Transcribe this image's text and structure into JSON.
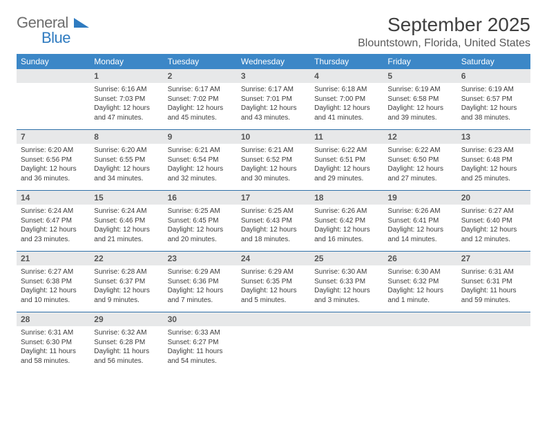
{
  "logo": {
    "text_general": "General",
    "text_blue": "Blue"
  },
  "title": "September 2025",
  "location": "Blountstown, Florida, United States",
  "colors": {
    "header_bg": "#3c87c7",
    "header_text": "#ffffff",
    "daynum_bg": "#e7e8e9",
    "daynum_text": "#555555",
    "row_border": "#2d6fa8",
    "body_text": "#3b3b3b",
    "logo_gray": "#6d6d6d",
    "logo_blue": "#2f7bc0",
    "title_color": "#404040",
    "location_color": "#585858"
  },
  "typography": {
    "month_title_size": 28,
    "location_size": 16,
    "header_size": 12,
    "daynum_size": 12,
    "cell_size": 10
  },
  "day_names": [
    "Sunday",
    "Monday",
    "Tuesday",
    "Wednesday",
    "Thursday",
    "Friday",
    "Saturday"
  ],
  "weeks": [
    {
      "nums": [
        "",
        "1",
        "2",
        "3",
        "4",
        "5",
        "6"
      ],
      "cells": [
        {
          "sunrise": "",
          "sunset": "",
          "daylight": ""
        },
        {
          "sunrise": "Sunrise: 6:16 AM",
          "sunset": "Sunset: 7:03 PM",
          "daylight": "Daylight: 12 hours and 47 minutes."
        },
        {
          "sunrise": "Sunrise: 6:17 AM",
          "sunset": "Sunset: 7:02 PM",
          "daylight": "Daylight: 12 hours and 45 minutes."
        },
        {
          "sunrise": "Sunrise: 6:17 AM",
          "sunset": "Sunset: 7:01 PM",
          "daylight": "Daylight: 12 hours and 43 minutes."
        },
        {
          "sunrise": "Sunrise: 6:18 AM",
          "sunset": "Sunset: 7:00 PM",
          "daylight": "Daylight: 12 hours and 41 minutes."
        },
        {
          "sunrise": "Sunrise: 6:19 AM",
          "sunset": "Sunset: 6:58 PM",
          "daylight": "Daylight: 12 hours and 39 minutes."
        },
        {
          "sunrise": "Sunrise: 6:19 AM",
          "sunset": "Sunset: 6:57 PM",
          "daylight": "Daylight: 12 hours and 38 minutes."
        }
      ]
    },
    {
      "nums": [
        "7",
        "8",
        "9",
        "10",
        "11",
        "12",
        "13"
      ],
      "cells": [
        {
          "sunrise": "Sunrise: 6:20 AM",
          "sunset": "Sunset: 6:56 PM",
          "daylight": "Daylight: 12 hours and 36 minutes."
        },
        {
          "sunrise": "Sunrise: 6:20 AM",
          "sunset": "Sunset: 6:55 PM",
          "daylight": "Daylight: 12 hours and 34 minutes."
        },
        {
          "sunrise": "Sunrise: 6:21 AM",
          "sunset": "Sunset: 6:54 PM",
          "daylight": "Daylight: 12 hours and 32 minutes."
        },
        {
          "sunrise": "Sunrise: 6:21 AM",
          "sunset": "Sunset: 6:52 PM",
          "daylight": "Daylight: 12 hours and 30 minutes."
        },
        {
          "sunrise": "Sunrise: 6:22 AM",
          "sunset": "Sunset: 6:51 PM",
          "daylight": "Daylight: 12 hours and 29 minutes."
        },
        {
          "sunrise": "Sunrise: 6:22 AM",
          "sunset": "Sunset: 6:50 PM",
          "daylight": "Daylight: 12 hours and 27 minutes."
        },
        {
          "sunrise": "Sunrise: 6:23 AM",
          "sunset": "Sunset: 6:48 PM",
          "daylight": "Daylight: 12 hours and 25 minutes."
        }
      ]
    },
    {
      "nums": [
        "14",
        "15",
        "16",
        "17",
        "18",
        "19",
        "20"
      ],
      "cells": [
        {
          "sunrise": "Sunrise: 6:24 AM",
          "sunset": "Sunset: 6:47 PM",
          "daylight": "Daylight: 12 hours and 23 minutes."
        },
        {
          "sunrise": "Sunrise: 6:24 AM",
          "sunset": "Sunset: 6:46 PM",
          "daylight": "Daylight: 12 hours and 21 minutes."
        },
        {
          "sunrise": "Sunrise: 6:25 AM",
          "sunset": "Sunset: 6:45 PM",
          "daylight": "Daylight: 12 hours and 20 minutes."
        },
        {
          "sunrise": "Sunrise: 6:25 AM",
          "sunset": "Sunset: 6:43 PM",
          "daylight": "Daylight: 12 hours and 18 minutes."
        },
        {
          "sunrise": "Sunrise: 6:26 AM",
          "sunset": "Sunset: 6:42 PM",
          "daylight": "Daylight: 12 hours and 16 minutes."
        },
        {
          "sunrise": "Sunrise: 6:26 AM",
          "sunset": "Sunset: 6:41 PM",
          "daylight": "Daylight: 12 hours and 14 minutes."
        },
        {
          "sunrise": "Sunrise: 6:27 AM",
          "sunset": "Sunset: 6:40 PM",
          "daylight": "Daylight: 12 hours and 12 minutes."
        }
      ]
    },
    {
      "nums": [
        "21",
        "22",
        "23",
        "24",
        "25",
        "26",
        "27"
      ],
      "cells": [
        {
          "sunrise": "Sunrise: 6:27 AM",
          "sunset": "Sunset: 6:38 PM",
          "daylight": "Daylight: 12 hours and 10 minutes."
        },
        {
          "sunrise": "Sunrise: 6:28 AM",
          "sunset": "Sunset: 6:37 PM",
          "daylight": "Daylight: 12 hours and 9 minutes."
        },
        {
          "sunrise": "Sunrise: 6:29 AM",
          "sunset": "Sunset: 6:36 PM",
          "daylight": "Daylight: 12 hours and 7 minutes."
        },
        {
          "sunrise": "Sunrise: 6:29 AM",
          "sunset": "Sunset: 6:35 PM",
          "daylight": "Daylight: 12 hours and 5 minutes."
        },
        {
          "sunrise": "Sunrise: 6:30 AM",
          "sunset": "Sunset: 6:33 PM",
          "daylight": "Daylight: 12 hours and 3 minutes."
        },
        {
          "sunrise": "Sunrise: 6:30 AM",
          "sunset": "Sunset: 6:32 PM",
          "daylight": "Daylight: 12 hours and 1 minute."
        },
        {
          "sunrise": "Sunrise: 6:31 AM",
          "sunset": "Sunset: 6:31 PM",
          "daylight": "Daylight: 11 hours and 59 minutes."
        }
      ]
    },
    {
      "nums": [
        "28",
        "29",
        "30",
        "",
        "",
        "",
        ""
      ],
      "cells": [
        {
          "sunrise": "Sunrise: 6:31 AM",
          "sunset": "Sunset: 6:30 PM",
          "daylight": "Daylight: 11 hours and 58 minutes."
        },
        {
          "sunrise": "Sunrise: 6:32 AM",
          "sunset": "Sunset: 6:28 PM",
          "daylight": "Daylight: 11 hours and 56 minutes."
        },
        {
          "sunrise": "Sunrise: 6:33 AM",
          "sunset": "Sunset: 6:27 PM",
          "daylight": "Daylight: 11 hours and 54 minutes."
        },
        {
          "sunrise": "",
          "sunset": "",
          "daylight": ""
        },
        {
          "sunrise": "",
          "sunset": "",
          "daylight": ""
        },
        {
          "sunrise": "",
          "sunset": "",
          "daylight": ""
        },
        {
          "sunrise": "",
          "sunset": "",
          "daylight": ""
        }
      ]
    }
  ]
}
